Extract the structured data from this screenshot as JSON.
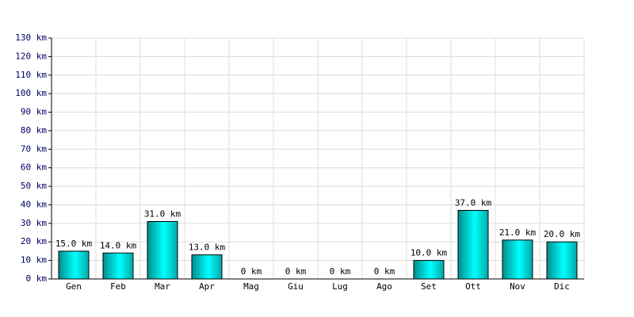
{
  "chart_data": {
    "type": "bar",
    "categories": [
      "Gen",
      "Feb",
      "Mar",
      "Apr",
      "Mag",
      "Giu",
      "Lug",
      "Ago",
      "Set",
      "Ott",
      "Nov",
      "Dic"
    ],
    "values": [
      15,
      14,
      31,
      13,
      0,
      0,
      0,
      0,
      10,
      37,
      21,
      20
    ],
    "value_labels": [
      "15.0 km",
      "14.0 km",
      "31.0 km",
      "13.0 km",
      "0 km",
      "0 km",
      "0 km",
      "0 km",
      "10.0 km",
      "37.0 km",
      "21.0 km",
      "20.0 km"
    ],
    "color": "#00c8c8",
    "ylim": [
      0,
      130
    ],
    "yticks": [
      {
        "value": 0,
        "label": "0 km"
      },
      {
        "value": 10,
        "label": "10 km"
      },
      {
        "value": 20,
        "label": "20 km"
      },
      {
        "value": 30,
        "label": "30 km"
      },
      {
        "value": 40,
        "label": "40 km"
      },
      {
        "value": 50,
        "label": "50 km"
      },
      {
        "value": 60,
        "label": "60 km"
      },
      {
        "value": 70,
        "label": "70 km"
      },
      {
        "value": 80,
        "label": "80 km"
      },
      {
        "value": 90,
        "label": "90 km"
      },
      {
        "value": 100,
        "label": "100 km"
      },
      {
        "value": 110,
        "label": "110 km"
      },
      {
        "value": 120,
        "label": "120 km"
      },
      {
        "value": 130,
        "label": "130 km"
      }
    ],
    "grid": true
  }
}
